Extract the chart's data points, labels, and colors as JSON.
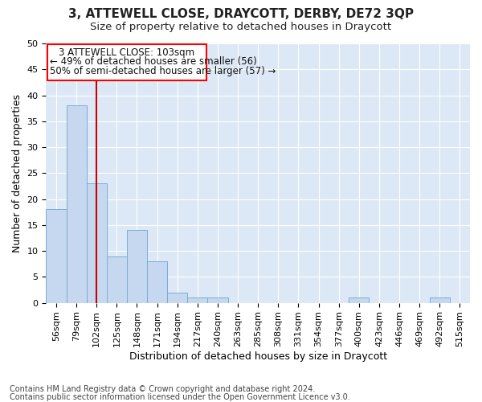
{
  "title": "3, ATTEWELL CLOSE, DRAYCOTT, DERBY, DE72 3QP",
  "subtitle": "Size of property relative to detached houses in Draycott",
  "xlabel": "Distribution of detached houses by size in Draycott",
  "ylabel": "Number of detached properties",
  "categories": [
    "56sqm",
    "79sqm",
    "102sqm",
    "125sqm",
    "148sqm",
    "171sqm",
    "194sqm",
    "217sqm",
    "240sqm",
    "263sqm",
    "285sqm",
    "308sqm",
    "331sqm",
    "354sqm",
    "377sqm",
    "400sqm",
    "423sqm",
    "446sqm",
    "469sqm",
    "492sqm",
    "515sqm"
  ],
  "values": [
    18,
    38,
    23,
    9,
    14,
    8,
    2,
    1,
    1,
    0,
    0,
    0,
    0,
    0,
    0,
    1,
    0,
    0,
    0,
    1,
    0
  ],
  "bar_color": "#c5d8f0",
  "bar_edge_color": "#7aadd4",
  "vline_x_index": 2,
  "vline_color": "#cc0000",
  "ylim": [
    0,
    50
  ],
  "yticks": [
    0,
    5,
    10,
    15,
    20,
    25,
    30,
    35,
    40,
    45,
    50
  ],
  "annotation_title": "3 ATTEWELL CLOSE: 103sqm",
  "annotation_line1": "← 49% of detached houses are smaller (56)",
  "annotation_line2": "50% of semi-detached houses are larger (57) →",
  "footer_line1": "Contains HM Land Registry data © Crown copyright and database right 2024.",
  "footer_line2": "Contains public sector information licensed under the Open Government Licence v3.0.",
  "fig_bg_color": "#ffffff",
  "plot_bg_color": "#dce8f5",
  "grid_color": "#ffffff",
  "title_fontsize": 11,
  "subtitle_fontsize": 9.5,
  "axis_label_fontsize": 9,
  "tick_fontsize": 8,
  "footer_fontsize": 7,
  "ann_fontsize": 8.5
}
